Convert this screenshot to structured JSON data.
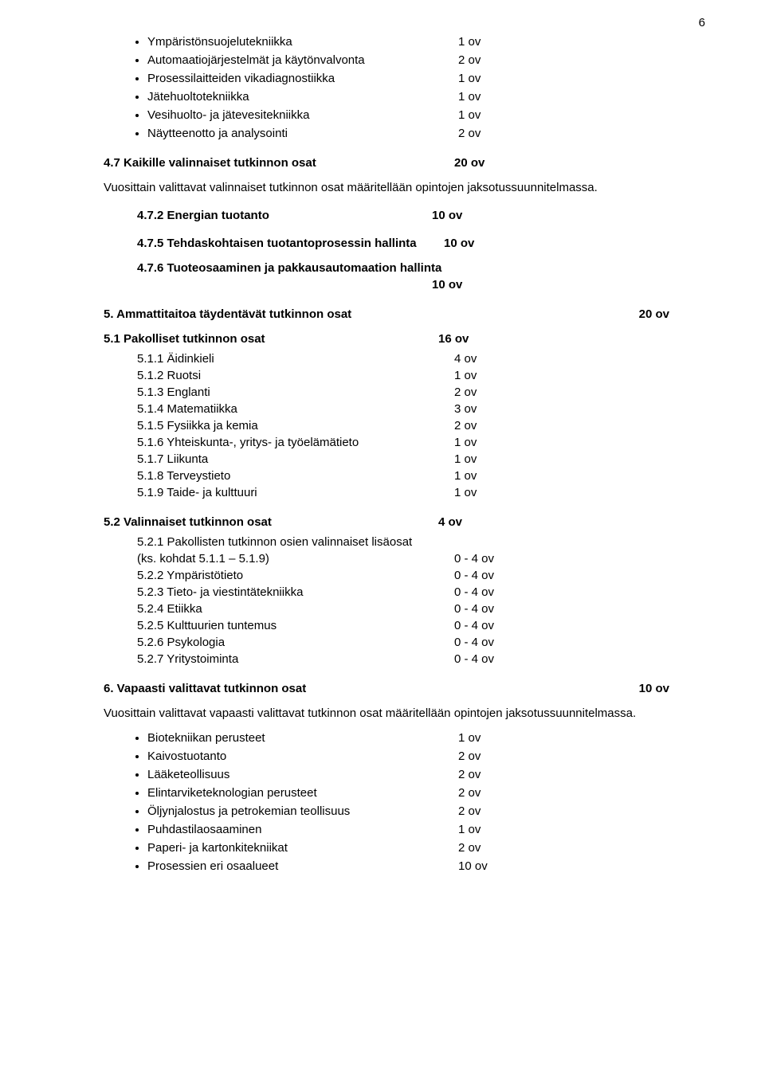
{
  "page_number": "6",
  "top_bullets": [
    {
      "label": "Ympäristönsuojelutekniikka",
      "val": "1 ov"
    },
    {
      "label": "Automaatiojärjestelmät ja käytönvalvonta",
      "val": "2 ov"
    },
    {
      "label": "Prosessilaitteiden vikadiagnostiikka",
      "val": "1 ov"
    },
    {
      "label": "Jätehuoltotekniikka",
      "val": "1 ov"
    },
    {
      "label": "Vesihuolto- ja jätevesitekniikka",
      "val": "1 ov"
    },
    {
      "label": "Näytteenotto ja analysointi",
      "val": "2 ov"
    }
  ],
  "sec47": {
    "label": "4.7 Kaikille valinnaiset tutkinnon osat",
    "val": "20 ov",
    "para": "Vuosittain valittavat valinnaiset tutkinnon osat määritellään opintojen jaksotussuunnitelmassa.",
    "items": [
      {
        "label": "4.7.2 Energian tuotanto",
        "val": "10 ov"
      },
      {
        "label": "4.7.5 Tehdaskohtaisen tuotantoprosessin hallinta",
        "val": "10 ov"
      },
      {
        "label": "4.7.6 Tuoteosaaminen ja pakkausautomaation hallinta",
        "val": "10 ov"
      }
    ]
  },
  "sec5": {
    "label": "5. Ammattitaitoa täydentävät tutkinnon osat",
    "val": "20 ov"
  },
  "sec51": {
    "label": "5.1 Pakolliset tutkinnon osat",
    "val": "16 ov",
    "items": [
      {
        "label": "5.1.1 Äidinkieli",
        "val": "4 ov"
      },
      {
        "label": "5.1.2 Ruotsi",
        "val": "1 ov"
      },
      {
        "label": "5.1.3 Englanti",
        "val": "2 ov"
      },
      {
        "label": "5.1.4 Matematiikka",
        "val": "3 ov"
      },
      {
        "label": "5.1.5 Fysiikka ja kemia",
        "val": "2 ov"
      },
      {
        "label": "5.1.6 Yhteiskunta-, yritys- ja työelämätieto",
        "val": "1 ov"
      },
      {
        "label": "5.1.7 Liikunta",
        "val": "1 ov"
      },
      {
        "label": "5.1.8 Terveystieto",
        "val": "1 ov"
      },
      {
        "label": "5.1.9 Taide- ja kulttuuri",
        "val": "1 ov"
      }
    ]
  },
  "sec52": {
    "label": "5.2 Valinnaiset tutkinnon osat",
    "val": "4 ov",
    "items": [
      {
        "label1": "5.2.1 Pakollisten tutkinnon osien valinnaiset lisäosat",
        "label2": "(ks. kohdat 5.1.1 – 5.1.9)",
        "val": "0 - 4 ov"
      },
      {
        "label": "5.2.2 Ympäristötieto",
        "val": "0 - 4 ov"
      },
      {
        "label": "5.2.3 Tieto- ja viestintätekniikka",
        "val": "0 - 4 ov"
      },
      {
        "label": "5.2.4 Etiikka",
        "val": "0 - 4 ov"
      },
      {
        "label": "5.2.5 Kulttuurien tuntemus",
        "val": "0 - 4 ov"
      },
      {
        "label": "5.2.6 Psykologia",
        "val": "0 - 4 ov"
      },
      {
        "label": "5.2.7 Yritystoiminta",
        "val": "0 - 4 ov"
      }
    ]
  },
  "sec6": {
    "label": "6. Vapaasti valittavat tutkinnon osat",
    "val": "10 ov",
    "para": "Vuosittain valittavat vapaasti valittavat tutkinnon osat määritellään opintojen jaksotussuunnitelmassa."
  },
  "bottom_bullets": [
    {
      "label": "Biotekniikan perusteet",
      "val": "1 ov"
    },
    {
      "label": "Kaivostuotanto",
      "val": "2 ov"
    },
    {
      "label": "Lääketeollisuus",
      "val": "2 ov"
    },
    {
      "label": "Elintarviketeknologian perusteet",
      "val": "2 ov"
    },
    {
      "label": "Öljynjalostus ja petrokemian teollisuus",
      "val": "2 ov"
    },
    {
      "label": "Puhdastilaosaaminen",
      "val": "1 ov"
    },
    {
      "label": "Paperi- ja kartonkitekniikat",
      "val": "2 ov"
    },
    {
      "label": "Prosessien eri osaalueet",
      "val": "10 ov"
    }
  ]
}
